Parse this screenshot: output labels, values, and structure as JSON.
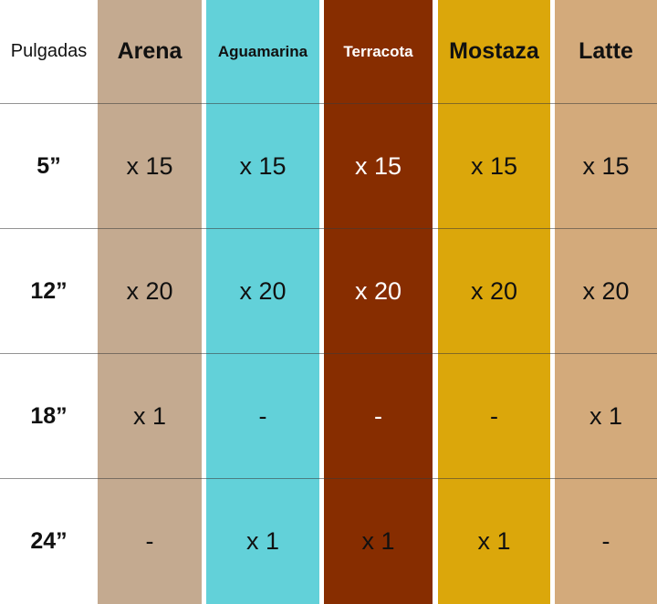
{
  "colors": {
    "arena": "#c4aa90",
    "aguamarina": "#62d1d9",
    "terracota": "#872d00",
    "mostaza": "#dba70b",
    "latte": "#d3aa7b"
  },
  "header": {
    "size_label": "Pulgadas",
    "columns": [
      "Arena",
      "Aguamarina",
      "Terracota",
      "Mostaza",
      "Latte"
    ]
  },
  "rows": [
    {
      "size": "5”",
      "values": [
        "x 15",
        "x 15",
        "x 15",
        "x 15",
        "x 15"
      ]
    },
    {
      "size": "12”",
      "values": [
        "x 20",
        "x 20",
        "x 20",
        "x 20",
        "x 20"
      ]
    },
    {
      "size": "18”",
      "values": [
        "x 1",
        "-",
        "-",
        "-",
        "x 1"
      ]
    },
    {
      "size": "24”",
      "values": [
        "-",
        "x 1",
        "x 1",
        "x 1",
        "-"
      ]
    }
  ]
}
